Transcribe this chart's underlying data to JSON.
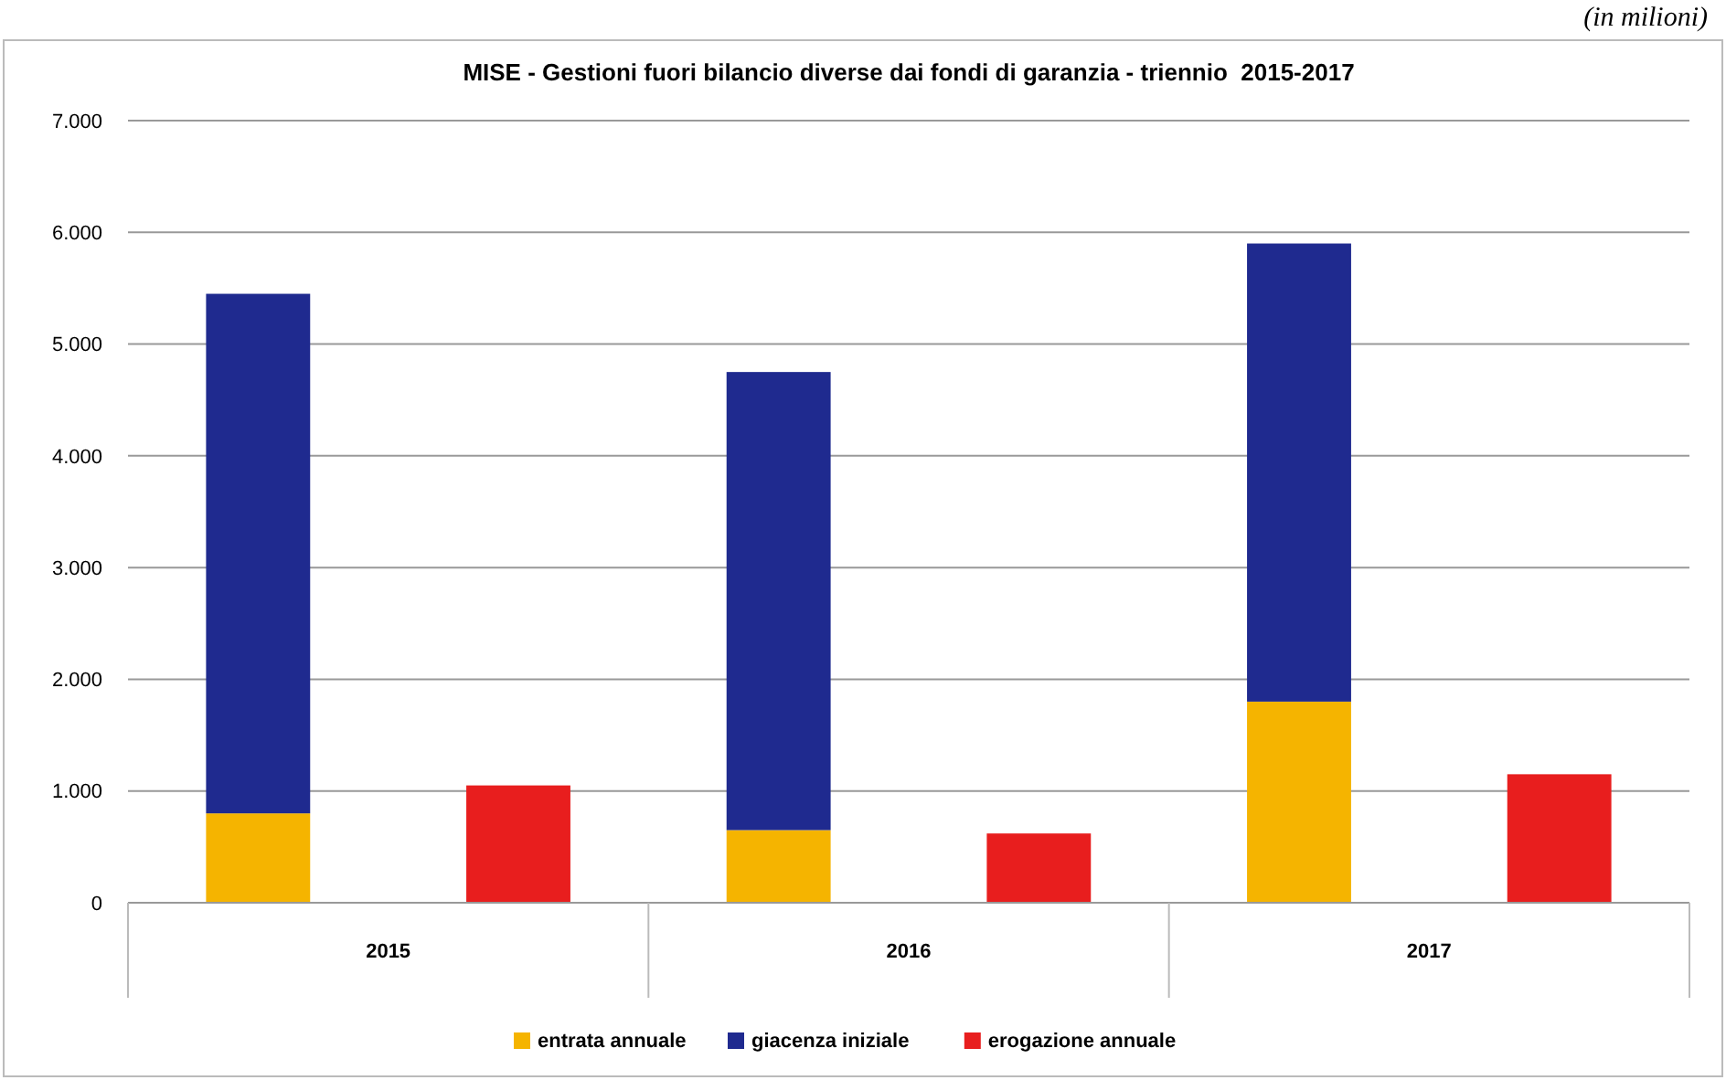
{
  "chart_data": {
    "type": "bar",
    "title": "MISE - Gestioni fuori bilancio diverse dai fondi di garanzia - triennio  2015-2017",
    "annotations": [
      "(in milioni)"
    ],
    "categories": [
      "2015",
      null,
      "2016",
      null,
      "2017",
      null
    ],
    "stacked": true,
    "series": [
      {
        "name": "entrata annuale",
        "color": "#f5b400",
        "values": [
          800,
          null,
          650,
          null,
          1800,
          null
        ]
      },
      {
        "name": "giacenza iniziale",
        "color": "#1f2a8f",
        "values": [
          4650,
          null,
          4100,
          null,
          4100,
          null
        ]
      },
      {
        "name": "erogazione annuale",
        "color": "#e81e1e",
        "values": [
          null,
          1050,
          null,
          620,
          null,
          1150
        ]
      }
    ],
    "ylim": [
      0,
      7000
    ],
    "yticks": [
      0,
      {
        "value": 1000,
        "label": "1.000"
      },
      {
        "value": 2000,
        "label": "2.000"
      },
      {
        "value": 3000,
        "label": "3.000"
      },
      {
        "value": 4000,
        "label": "4.000"
      },
      {
        "value": 5000,
        "label": "5.000"
      },
      {
        "value": 6000,
        "label": "6.000"
      },
      {
        "value": 7000,
        "label": "7.000"
      }
    ],
    "grid": "y",
    "legend": "bottom"
  }
}
